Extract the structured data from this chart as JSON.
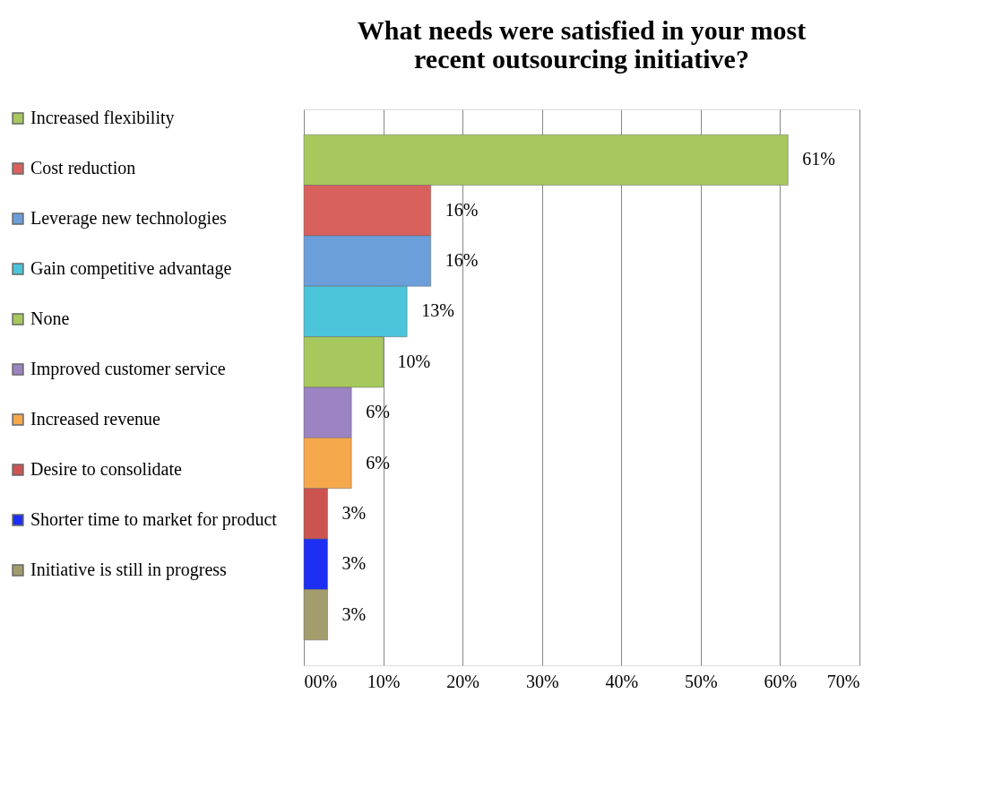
{
  "chart_data": {
    "type": "bar",
    "orientation": "horizontal",
    "title": "What needs were satisfied in your most recent outsourcing initiative?",
    "categories": [
      null,
      null,
      null,
      null,
      null,
      null,
      null,
      null,
      null,
      null
    ],
    "series": [
      {
        "name": "Increased flexibility",
        "color": "#a6c85c",
        "values": [
          61,
          null,
          null,
          null,
          null,
          null,
          null,
          null,
          null,
          null
        ],
        "value_labels": [
          "61%",
          null,
          null,
          null,
          null,
          null,
          null,
          null,
          null,
          null
        ]
      },
      {
        "name": "Cost reduction",
        "color": "#d8615d",
        "values": [
          null,
          16,
          null,
          null,
          null,
          null,
          null,
          null,
          null,
          null
        ],
        "value_labels": [
          null,
          "16%",
          null,
          null,
          null,
          null,
          null,
          null,
          null,
          null
        ]
      },
      {
        "name": "Leverage new technologies",
        "color": "#6b9fda",
        "values": [
          null,
          null,
          16,
          null,
          null,
          null,
          null,
          null,
          null,
          null
        ],
        "value_labels": [
          null,
          null,
          "16%",
          null,
          null,
          null,
          null,
          null,
          null,
          null
        ]
      },
      {
        "name": "Gain competitive advantage",
        "color": "#4cc5da",
        "values": [
          null,
          null,
          null,
          13,
          null,
          null,
          null,
          null,
          null,
          null
        ],
        "value_labels": [
          null,
          null,
          null,
          "13%",
          null,
          null,
          null,
          null,
          null,
          null
        ]
      },
      {
        "name": "None",
        "color": "#a6c85c",
        "values": [
          null,
          null,
          null,
          null,
          10,
          null,
          null,
          null,
          null,
          null
        ],
        "value_labels": [
          null,
          null,
          null,
          null,
          "10%",
          null,
          null,
          null,
          null,
          null
        ]
      },
      {
        "name": "Improved customer service",
        "color": "#9c83c2",
        "values": [
          null,
          null,
          null,
          null,
          null,
          6,
          null,
          null,
          null,
          null
        ],
        "value_labels": [
          null,
          null,
          null,
          null,
          null,
          "6%",
          null,
          null,
          null,
          null
        ]
      },
      {
        "name": "Increased revenue",
        "color": "#f6a84c",
        "values": [
          null,
          null,
          null,
          null,
          null,
          null,
          6,
          null,
          null,
          null
        ],
        "value_labels": [
          null,
          null,
          null,
          null,
          null,
          null,
          "6%",
          null,
          null,
          null
        ]
      },
      {
        "name": "Desire to consolidate",
        "color": "#cc5450",
        "values": [
          null,
          null,
          null,
          null,
          null,
          null,
          null,
          3,
          null,
          null
        ],
        "value_labels": [
          null,
          null,
          null,
          null,
          null,
          null,
          null,
          "3%",
          null,
          null
        ]
      },
      {
        "name": "Shorter time to market for product",
        "color": "#1c2ff2",
        "values": [
          null,
          null,
          null,
          null,
          null,
          null,
          null,
          null,
          3,
          null
        ],
        "value_labels": [
          null,
          null,
          null,
          null,
          null,
          null,
          null,
          null,
          "3%",
          null
        ]
      },
      {
        "name": "Initiative is still in progress",
        "color": "#a39c6c",
        "values": [
          null,
          null,
          null,
          null,
          null,
          null,
          null,
          null,
          null,
          3
        ],
        "value_labels": [
          null,
          null,
          null,
          null,
          null,
          null,
          null,
          null,
          null,
          "3%"
        ]
      }
    ],
    "xlim": [
      0,
      70
    ],
    "xticks": [
      {
        "value": 0,
        "label": "00%"
      },
      {
        "value": 10,
        "label": "10%"
      },
      {
        "value": 20,
        "label": "20%"
      },
      {
        "value": 30,
        "label": "30%"
      },
      {
        "value": 40,
        "label": "40%"
      },
      {
        "value": 50,
        "label": "50%"
      },
      {
        "value": 60,
        "label": "60%"
      },
      {
        "value": 70,
        "label": "70%"
      }
    ],
    "grid": "x",
    "legend": "left"
  }
}
